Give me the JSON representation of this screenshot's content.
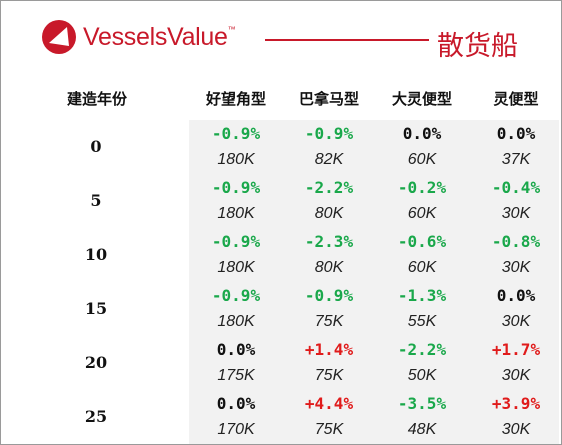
{
  "header": {
    "brand": "VesselsValue",
    "trademark": "™",
    "sector": "散货船",
    "brand_color": "#c8192a"
  },
  "table": {
    "age_header": "建造年份",
    "columns": [
      "好望角型",
      "巴拿马型",
      "大灵便型",
      "灵便型"
    ],
    "rows": [
      {
        "age": "0",
        "cells": [
          {
            "change": "-0.9%",
            "value": "180K"
          },
          {
            "change": "-0.9%",
            "value": "82K"
          },
          {
            "change": "0.0%",
            "value": "60K"
          },
          {
            "change": "0.0%",
            "value": "37K"
          }
        ]
      },
      {
        "age": "5",
        "cells": [
          {
            "change": "-0.9%",
            "value": "180K"
          },
          {
            "change": "-2.2%",
            "value": "80K"
          },
          {
            "change": "-0.2%",
            "value": "60K"
          },
          {
            "change": "-0.4%",
            "value": "30K"
          }
        ]
      },
      {
        "age": "10",
        "cells": [
          {
            "change": "-0.9%",
            "value": "180K"
          },
          {
            "change": "-2.3%",
            "value": "80K"
          },
          {
            "change": "-0.6%",
            "value": "60K"
          },
          {
            "change": "-0.8%",
            "value": "30K"
          }
        ]
      },
      {
        "age": "15",
        "cells": [
          {
            "change": "-0.9%",
            "value": "180K"
          },
          {
            "change": "-0.9%",
            "value": "75K"
          },
          {
            "change": "-1.3%",
            "value": "55K"
          },
          {
            "change": "0.0%",
            "value": "30K"
          }
        ]
      },
      {
        "age": "20",
        "cells": [
          {
            "change": "0.0%",
            "value": "175K"
          },
          {
            "change": "+1.4%",
            "value": "75K"
          },
          {
            "change": "-2.2%",
            "value": "50K"
          },
          {
            "change": "+1.7%",
            "value": "30K"
          }
        ]
      },
      {
        "age": "25",
        "cells": [
          {
            "change": "0.0%",
            "value": "170K"
          },
          {
            "change": "+4.4%",
            "value": "75K"
          },
          {
            "change": "-3.5%",
            "value": "48K"
          },
          {
            "change": "+3.9%",
            "value": "30K"
          }
        ]
      }
    ]
  },
  "colors": {
    "negative": "#1aa84b",
    "positive": "#e01b1b",
    "neutral": "#111111",
    "panel": "#f2f2f2"
  },
  "icons": {
    "logo": "vesselsvalue-logo-icon"
  }
}
